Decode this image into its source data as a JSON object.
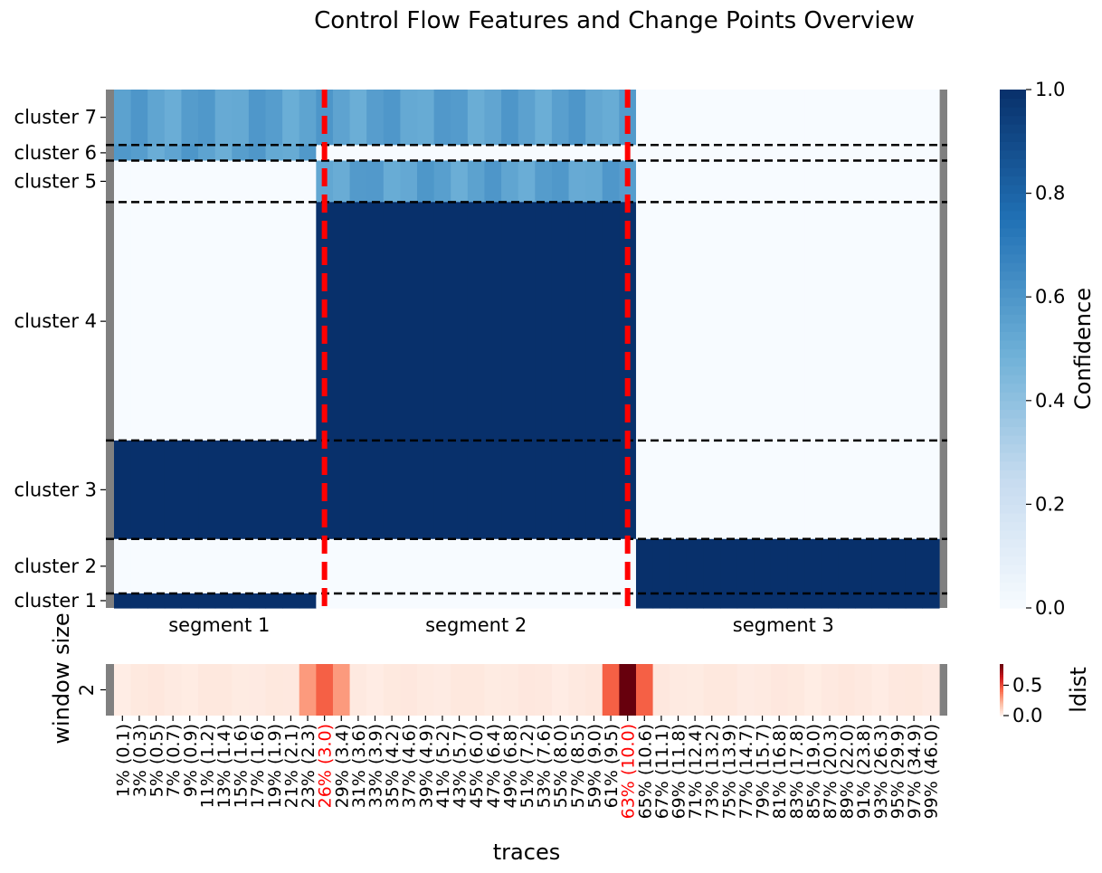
{
  "chart_data": {
    "title": "Control Flow Features and Change Points Overview",
    "main_heatmap": {
      "type": "heatmap",
      "colormap": "Blues",
      "clusters": [
        "cluster 1",
        "cluster 2",
        "cluster 3",
        "cluster 4",
        "cluster 5",
        "cluster 6",
        "cluster 7"
      ],
      "segments": [
        "segment 1",
        "segment 2",
        "segment 3"
      ],
      "colorbar": {
        "label": "Confidence",
        "range": [
          0.0,
          1.0
        ],
        "ticks": [
          "0.0",
          "0.2",
          "0.4",
          "0.6",
          "0.8",
          "1.0"
        ]
      },
      "cluster_confidence_by_segment": [
        {
          "cluster": "cluster 7",
          "segment 1": 0.55,
          "segment 2": 0.55,
          "segment 3": 0.0
        },
        {
          "cluster": "cluster 6",
          "segment 1": 0.55,
          "segment 2": 0.0,
          "segment 3": 0.0
        },
        {
          "cluster": "cluster 5",
          "segment 1": 0.0,
          "segment 2": 0.55,
          "segment 3": 0.0
        },
        {
          "cluster": "cluster 4",
          "segment 1": 0.0,
          "segment 2": 1.0,
          "segment 3": 0.0
        },
        {
          "cluster": "cluster 3",
          "segment 1": 1.0,
          "segment 2": 1.0,
          "segment 3": 0.0
        },
        {
          "cluster": "cluster 2",
          "segment 1": 0.0,
          "segment 2": 0.0,
          "segment 3": 1.0
        },
        {
          "cluster": "cluster 1",
          "segment 1": 1.0,
          "segment 2": 0.0,
          "segment 3": 1.0
        }
      ]
    },
    "window_heatmap": {
      "type": "heatmap",
      "colormap": "Reds",
      "ylabel": "window size",
      "row_label": "2",
      "colorbar": {
        "label": "ldist",
        "ticks": [
          "0.0",
          "0.5"
        ]
      },
      "xlabel": "traces",
      "tick_labels": [
        "1% (0.1)",
        "3% (0.3)",
        "5% (0.5)",
        "7% (0.7)",
        "9% (0.9)",
        "11% (1.2)",
        "13% (1.4)",
        "15% (1.6)",
        "17% (1.6)",
        "19% (1.9)",
        "21% (2.1)",
        "23% (2.3)",
        "26% (3.0)",
        "29% (3.4)",
        "31% (3.6)",
        "33% (3.9)",
        "35% (4.2)",
        "37% (4.6)",
        "39% (4.9)",
        "41% (5.2)",
        "43% (5.7)",
        "45% (6.0)",
        "47% (6.4)",
        "49% (6.8)",
        "51% (7.2)",
        "53% (7.6)",
        "55% (8.0)",
        "57% (8.5)",
        "59% (9.0)",
        "61% (9.5)",
        "63% (10.0)",
        "65% (10.6)",
        "67% (11.1)",
        "69% (11.8)",
        "71% (12.4)",
        "73% (13.2)",
        "75% (13.9)",
        "77% (14.7)",
        "79% (15.7)",
        "81% (16.8)",
        "83% (17.8)",
        "85% (19.0)",
        "87% (20.3)",
        "89% (22.0)",
        "91% (23.8)",
        "93% (26.3)",
        "95% (29.9)",
        "97% (34.9)",
        "99% (46.0)"
      ],
      "change_points": [
        "26% (3.0)",
        "63% (10.0)"
      ],
      "highlight_color": "#ff0000",
      "peak_values": [
        {
          "x": "26% (3.0)",
          "ldist": 0.45
        },
        {
          "x": "63% (10.0)",
          "ldist": 0.85
        }
      ]
    }
  }
}
